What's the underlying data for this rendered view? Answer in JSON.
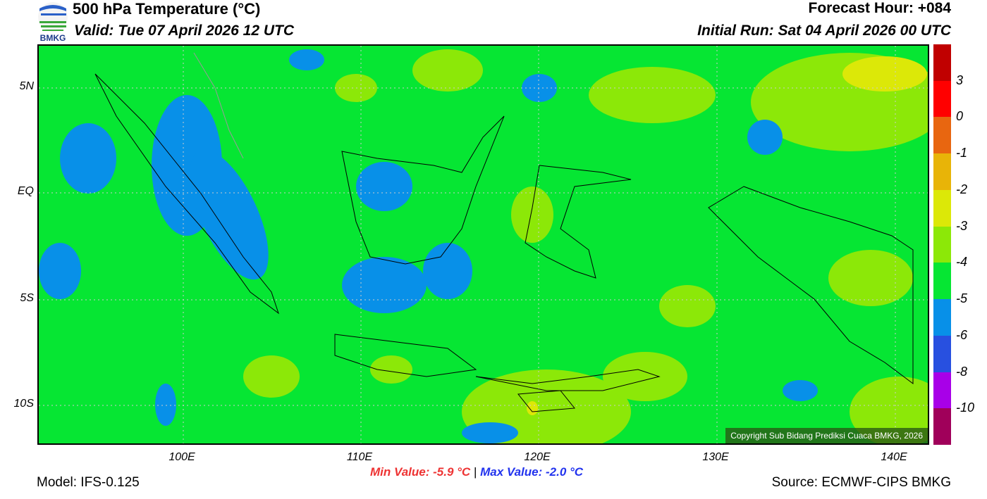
{
  "header": {
    "title": "500 hPa Temperature (°C)",
    "valid": "Valid: Tue 07 April 2026 12 UTC",
    "forecast_hour": "Forecast Hour: +084",
    "initial_run": "Initial Run: Sat 04 April 2026 00 UTC",
    "logo_text": "BMKG"
  },
  "axes": {
    "lat_labels": [
      "5N",
      "EQ",
      "5S",
      "10S"
    ],
    "lon_labels": [
      "100E",
      "110E",
      "120E",
      "130E",
      "140E"
    ]
  },
  "colorbar": {
    "labels": [
      "3",
      "0",
      "-1",
      "-2",
      "-3",
      "-4",
      "-5",
      "-6",
      "-8",
      "-10"
    ],
    "colors": [
      "#c00000",
      "#ff0000",
      "#e86610",
      "#e8b408",
      "#dce808",
      "#8ce808",
      "#06e633",
      "#0890e8",
      "#2850e0",
      "#a800e8",
      "#a0005a"
    ]
  },
  "map": {
    "copyright": "Copyright Sub Bidang Prediksi Cuaca BMKG, 2026"
  },
  "footer": {
    "model": "Model: IFS-0.125",
    "min_value": "Min Value: -5.9 °C",
    "separator": "|",
    "max_value": "Max Value: -2.0 °C",
    "source": "Source: ECMWF-CIPS BMKG"
  }
}
